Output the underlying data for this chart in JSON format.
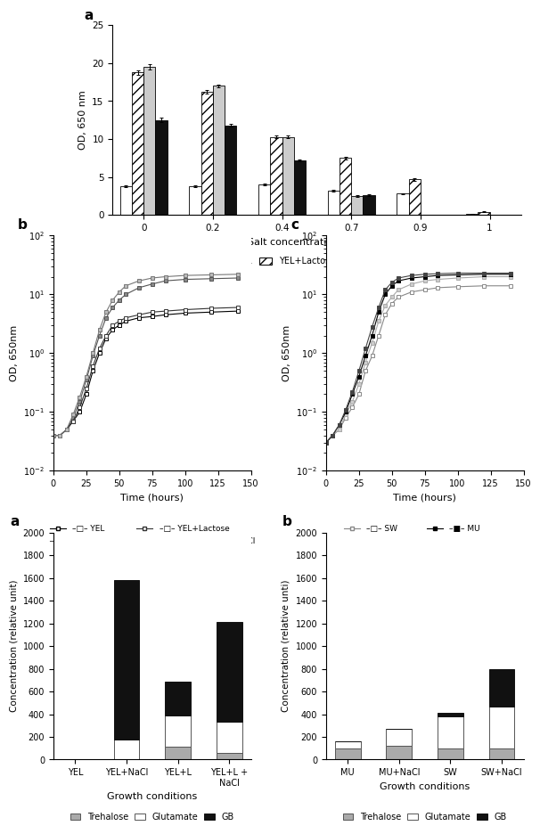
{
  "panel_a": {
    "salt_conc": [
      0,
      0.2,
      0.4,
      0.7,
      0.9,
      1.0
    ],
    "YEL": [
      3.8,
      3.8,
      4.0,
      3.2,
      2.8,
      0.1
    ],
    "YEL_Lac": [
      18.8,
      16.2,
      10.3,
      7.5,
      4.7,
      0.4
    ],
    "MU": [
      19.5,
      17.0,
      10.3,
      2.5,
      0.0,
      0.0
    ],
    "SW": [
      12.5,
      11.8,
      7.2,
      2.6,
      0.0,
      0.0
    ],
    "YEL_err": [
      0.1,
      0.1,
      0.15,
      0.1,
      0.1,
      0.05
    ],
    "YEL_Lac_err": [
      0.3,
      0.25,
      0.2,
      0.2,
      0.15,
      0.05
    ],
    "MU_err": [
      0.35,
      0.2,
      0.15,
      0.1,
      0.0,
      0.0
    ],
    "SW_err": [
      0.3,
      0.2,
      0.15,
      0.1,
      0.0,
      0.0
    ],
    "ylabel": "OD, 650 nm",
    "xlabel": "Salt concentration (mol.L⁻¹)",
    "ylim": [
      0,
      25
    ],
    "yticks": [
      0,
      5,
      10,
      15,
      20,
      25
    ]
  },
  "panel_b": {
    "label": "b",
    "xlabel": "Time (hours)",
    "ylabel": "OD, 650nm",
    "xlim": [
      0,
      150
    ],
    "ylim_log": [
      0.01,
      100
    ],
    "series": {
      "YEL": {
        "x": [
          0,
          5,
          10,
          15,
          20,
          25,
          30,
          35,
          40,
          45,
          50,
          55,
          65,
          75,
          85,
          100,
          120,
          140
        ],
        "y": [
          0.04,
          0.04,
          0.05,
          0.07,
          0.1,
          0.2,
          0.5,
          1.0,
          1.8,
          2.5,
          3.0,
          3.5,
          4.0,
          4.2,
          4.5,
          4.8,
          5.0,
          5.2
        ]
      },
      "YEL+NaCl": {
        "x": [
          0,
          5,
          10,
          15,
          20,
          25,
          30,
          35,
          40,
          45,
          50,
          55,
          65,
          75,
          85,
          100,
          120,
          140
        ],
        "y": [
          0.04,
          0.04,
          0.05,
          0.08,
          0.15,
          0.35,
          0.9,
          2.0,
          4.0,
          6.0,
          8.0,
          10.0,
          13.0,
          15.0,
          17.0,
          18.0,
          18.5,
          19.0
        ]
      },
      "YEL+Lactose": {
        "x": [
          0,
          5,
          10,
          15,
          20,
          25,
          30,
          35,
          40,
          45,
          50,
          55,
          65,
          75,
          85,
          100,
          120,
          140
        ],
        "y": [
          0.04,
          0.04,
          0.05,
          0.07,
          0.12,
          0.25,
          0.6,
          1.2,
          2.0,
          3.0,
          3.5,
          4.0,
          4.5,
          5.0,
          5.2,
          5.5,
          5.8,
          6.0
        ]
      },
      "YEL+Lactose+NaCl": {
        "x": [
          0,
          5,
          10,
          15,
          20,
          25,
          30,
          35,
          40,
          45,
          50,
          55,
          65,
          75,
          85,
          100,
          120,
          140
        ],
        "y": [
          0.04,
          0.04,
          0.05,
          0.09,
          0.18,
          0.4,
          1.0,
          2.5,
          5.0,
          8.0,
          11.0,
          14.0,
          17.0,
          19.0,
          20.0,
          21.0,
          21.5,
          22.0
        ]
      }
    }
  },
  "panel_c": {
    "label": "c",
    "xlabel": "Time (hours)",
    "ylabel": "OD, 650nm",
    "xlim": [
      0,
      150
    ],
    "ylim_log": [
      0.01,
      100
    ],
    "series": {
      "SW": {
        "x": [
          0,
          5,
          10,
          15,
          20,
          25,
          30,
          35,
          40,
          45,
          50,
          55,
          65,
          75,
          85,
          100,
          120,
          140
        ],
        "y": [
          0.03,
          0.04,
          0.05,
          0.08,
          0.12,
          0.2,
          0.5,
          0.9,
          2.0,
          4.5,
          7.0,
          9.0,
          11.0,
          12.0,
          13.0,
          13.5,
          14.0,
          14.0
        ]
      },
      "SW+NaCl": {
        "x": [
          0,
          5,
          10,
          15,
          20,
          25,
          30,
          35,
          40,
          45,
          50,
          55,
          65,
          75,
          85,
          100,
          120,
          140
        ],
        "y": [
          0.03,
          0.04,
          0.05,
          0.09,
          0.15,
          0.3,
          0.7,
          1.5,
          3.5,
          6.5,
          9.0,
          12.0,
          15.0,
          17.0,
          18.0,
          19.0,
          20.0,
          20.0
        ]
      },
      "MU": {
        "x": [
          0,
          5,
          10,
          15,
          20,
          25,
          30,
          35,
          40,
          45,
          50,
          55,
          65,
          75,
          85,
          100,
          120,
          140
        ],
        "y": [
          0.03,
          0.04,
          0.06,
          0.1,
          0.2,
          0.4,
          0.9,
          2.0,
          5.0,
          10.0,
          14.0,
          17.0,
          19.0,
          20.0,
          21.0,
          21.5,
          22.0,
          22.0
        ]
      },
      "MU+NaCl": {
        "x": [
          0,
          5,
          10,
          15,
          20,
          25,
          30,
          35,
          40,
          45,
          50,
          55,
          65,
          75,
          85,
          100,
          120,
          140
        ],
        "y": [
          0.03,
          0.04,
          0.06,
          0.11,
          0.22,
          0.5,
          1.2,
          2.8,
          6.0,
          12.0,
          16.0,
          19.0,
          21.0,
          22.0,
          22.5,
          23.0,
          23.0,
          23.0
        ]
      }
    }
  },
  "panel_d": {
    "label": "a",
    "categories": [
      "YEL",
      "YEL+NaCl",
      "YEL+L",
      "YEL+L +\nNaCl"
    ],
    "trehalose": [
      5,
      5,
      110,
      60
    ],
    "glutamate": [
      0,
      175,
      280,
      270
    ],
    "GB": [
      0,
      1400,
      300,
      880
    ],
    "ylabel": "Concentration (relative unit)",
    "xlabel": "Growth conditions",
    "ylim": [
      0,
      2000
    ],
    "yticks": [
      0,
      200,
      400,
      600,
      800,
      1000,
      1200,
      1400,
      1600,
      1800,
      2000
    ]
  },
  "panel_e": {
    "label": "b",
    "categories": [
      "MU",
      "MU+NaCl",
      "SW",
      "SW+NaCl"
    ],
    "trehalose": [
      100,
      120,
      100,
      100
    ],
    "glutamate": [
      60,
      150,
      280,
      370
    ],
    "GB": [
      0,
      0,
      30,
      330
    ],
    "ylabel": "Concentration (relative unti)",
    "xlabel": "Growth conditions",
    "ylim": [
      0,
      2000
    ],
    "yticks": [
      0,
      200,
      400,
      600,
      800,
      1000,
      1200,
      1400,
      1600,
      1800,
      2000
    ]
  },
  "colors": {
    "trehalose": "#aaaaaa",
    "glutamate": "#ffffff",
    "GB": "#111111",
    "trehalose_edge": "#555555",
    "glutamate_edge": "#555555",
    "GB_edge": "#111111"
  },
  "series_colors_b": {
    "YEL": {
      "color": "#000000",
      "mfc": "white"
    },
    "YEL+NaCl": {
      "color": "#555555",
      "mfc": "#888888"
    },
    "YEL+Lactose": {
      "color": "#333333",
      "mfc": "white"
    },
    "YEL+Lactose+NaCl": {
      "color": "#777777",
      "mfc": "#bbbbbb"
    }
  },
  "series_colors_c": {
    "SW": {
      "color": "#888888",
      "mfc": "white"
    },
    "SW+NaCl": {
      "color": "#aaaaaa",
      "mfc": "#cccccc"
    },
    "MU": {
      "color": "#000000",
      "mfc": "#000000"
    },
    "MU+NaCl": {
      "color": "#444444",
      "mfc": "#444444"
    }
  }
}
